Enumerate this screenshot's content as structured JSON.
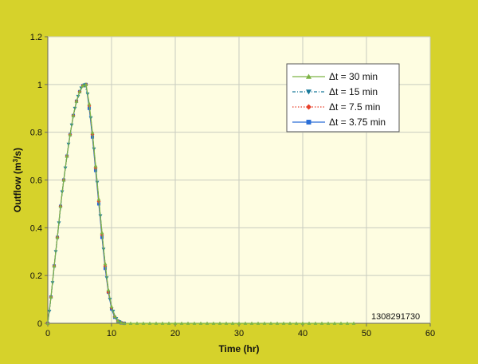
{
  "colors": {
    "page_background": "#d6d22b",
    "plot_background": "#fefde1",
    "grid": "#c8ccc0",
    "axis": "#666666"
  },
  "chart_data": {
    "type": "line",
    "title": "",
    "xlabel": "Time (hr)",
    "ylabel": "Outflow (m3/s)",
    "ylabel_parts": {
      "main": "Outflow (m",
      "sup": "3",
      "end": "/s)"
    },
    "xlim": [
      0,
      60
    ],
    "ylim": [
      0,
      1.2
    ],
    "xticks": [
      0,
      10,
      20,
      30,
      40,
      50,
      60
    ],
    "yticks": [
      0,
      0.2,
      0.4,
      0.6,
      0.8,
      1,
      1.2
    ],
    "ytick_labels": [
      "0",
      "0.2",
      "0.4",
      "0.6",
      "0.8",
      "1",
      "1.2"
    ],
    "grid": true,
    "legend_placement": "top-right",
    "annotation": "1308291730",
    "series": [
      {
        "name": "Δt = 30 min",
        "color": "#7db346",
        "line_style": "solid",
        "marker": "triangle-up",
        "x": [
          0,
          0.5,
          1,
          1.5,
          2,
          2.5,
          3,
          3.5,
          4,
          4.5,
          5,
          5.5,
          6,
          6.5,
          7,
          7.5,
          8,
          8.5,
          9,
          9.5,
          10,
          10.5,
          11,
          11.5,
          12,
          13,
          14,
          15,
          16,
          17,
          18,
          19,
          20,
          21,
          22,
          23,
          24,
          25,
          26,
          27,
          28,
          29,
          30,
          31,
          32,
          33,
          34,
          35,
          36,
          37,
          38,
          39,
          40,
          41,
          42,
          43,
          44,
          45,
          46,
          47,
          48
        ],
        "y": [
          0,
          0.11,
          0.24,
          0.36,
          0.49,
          0.6,
          0.7,
          0.79,
          0.87,
          0.93,
          0.97,
          0.995,
          1.0,
          0.92,
          0.8,
          0.66,
          0.52,
          0.38,
          0.25,
          0.14,
          0.07,
          0.03,
          0.01,
          0.003,
          0,
          0,
          0,
          0,
          0,
          0,
          0,
          0,
          0,
          0,
          0,
          0,
          0,
          0,
          0,
          0,
          0,
          0,
          0,
          0,
          0,
          0,
          0,
          0,
          0,
          0,
          0,
          0,
          0,
          0,
          0,
          0,
          0,
          0,
          0,
          0,
          0
        ]
      },
      {
        "name": "Δt = 15 min",
        "color": "#1a7a9b",
        "line_style": "dash-dot",
        "marker": "triangle-down",
        "x": [
          0.25,
          0.75,
          1.25,
          1.75,
          2.25,
          2.75,
          3.25,
          3.75,
          4.25,
          4.75,
          5.25,
          5.75,
          6.25,
          6.75,
          7.25,
          7.75,
          8.25,
          8.75,
          9.25,
          9.75,
          10.25,
          10.75,
          11.25
        ],
        "y": [
          0.05,
          0.17,
          0.3,
          0.42,
          0.55,
          0.65,
          0.75,
          0.83,
          0.9,
          0.95,
          0.985,
          0.998,
          0.96,
          0.86,
          0.73,
          0.59,
          0.45,
          0.31,
          0.19,
          0.1,
          0.05,
          0.02,
          0.006
        ]
      },
      {
        "name": "Δt = 7.5 min",
        "color": "#e8402a",
        "line_style": "dotted",
        "marker": "diamond",
        "x": [
          0,
          0.5,
          1,
          1.5,
          2,
          2.5,
          3,
          3.5,
          4,
          4.5,
          5,
          5.5,
          6,
          6.5,
          7,
          7.5,
          8,
          8.5,
          9,
          9.5,
          10,
          10.5,
          11,
          11.5,
          12
        ],
        "y": [
          0,
          0.11,
          0.24,
          0.36,
          0.49,
          0.6,
          0.7,
          0.79,
          0.87,
          0.93,
          0.97,
          0.995,
          1.0,
          0.91,
          0.79,
          0.65,
          0.51,
          0.37,
          0.24,
          0.13,
          0.065,
          0.028,
          0.01,
          0.003,
          0
        ]
      },
      {
        "name": "Δt = 3.75 min",
        "color": "#2a6ed8",
        "line_style": "solid",
        "marker": "square",
        "x": [
          0,
          0.5,
          1,
          1.5,
          2,
          2.5,
          3,
          3.5,
          4,
          4.5,
          5,
          5.5,
          6,
          6.5,
          7,
          7.5,
          8,
          8.5,
          9,
          9.5,
          10,
          10.5,
          11,
          11.5,
          12
        ],
        "y": [
          0,
          0.11,
          0.24,
          0.36,
          0.49,
          0.6,
          0.7,
          0.79,
          0.87,
          0.93,
          0.97,
          0.995,
          1.0,
          0.9,
          0.78,
          0.64,
          0.5,
          0.36,
          0.23,
          0.13,
          0.06,
          0.025,
          0.009,
          0.002,
          0
        ]
      }
    ]
  }
}
